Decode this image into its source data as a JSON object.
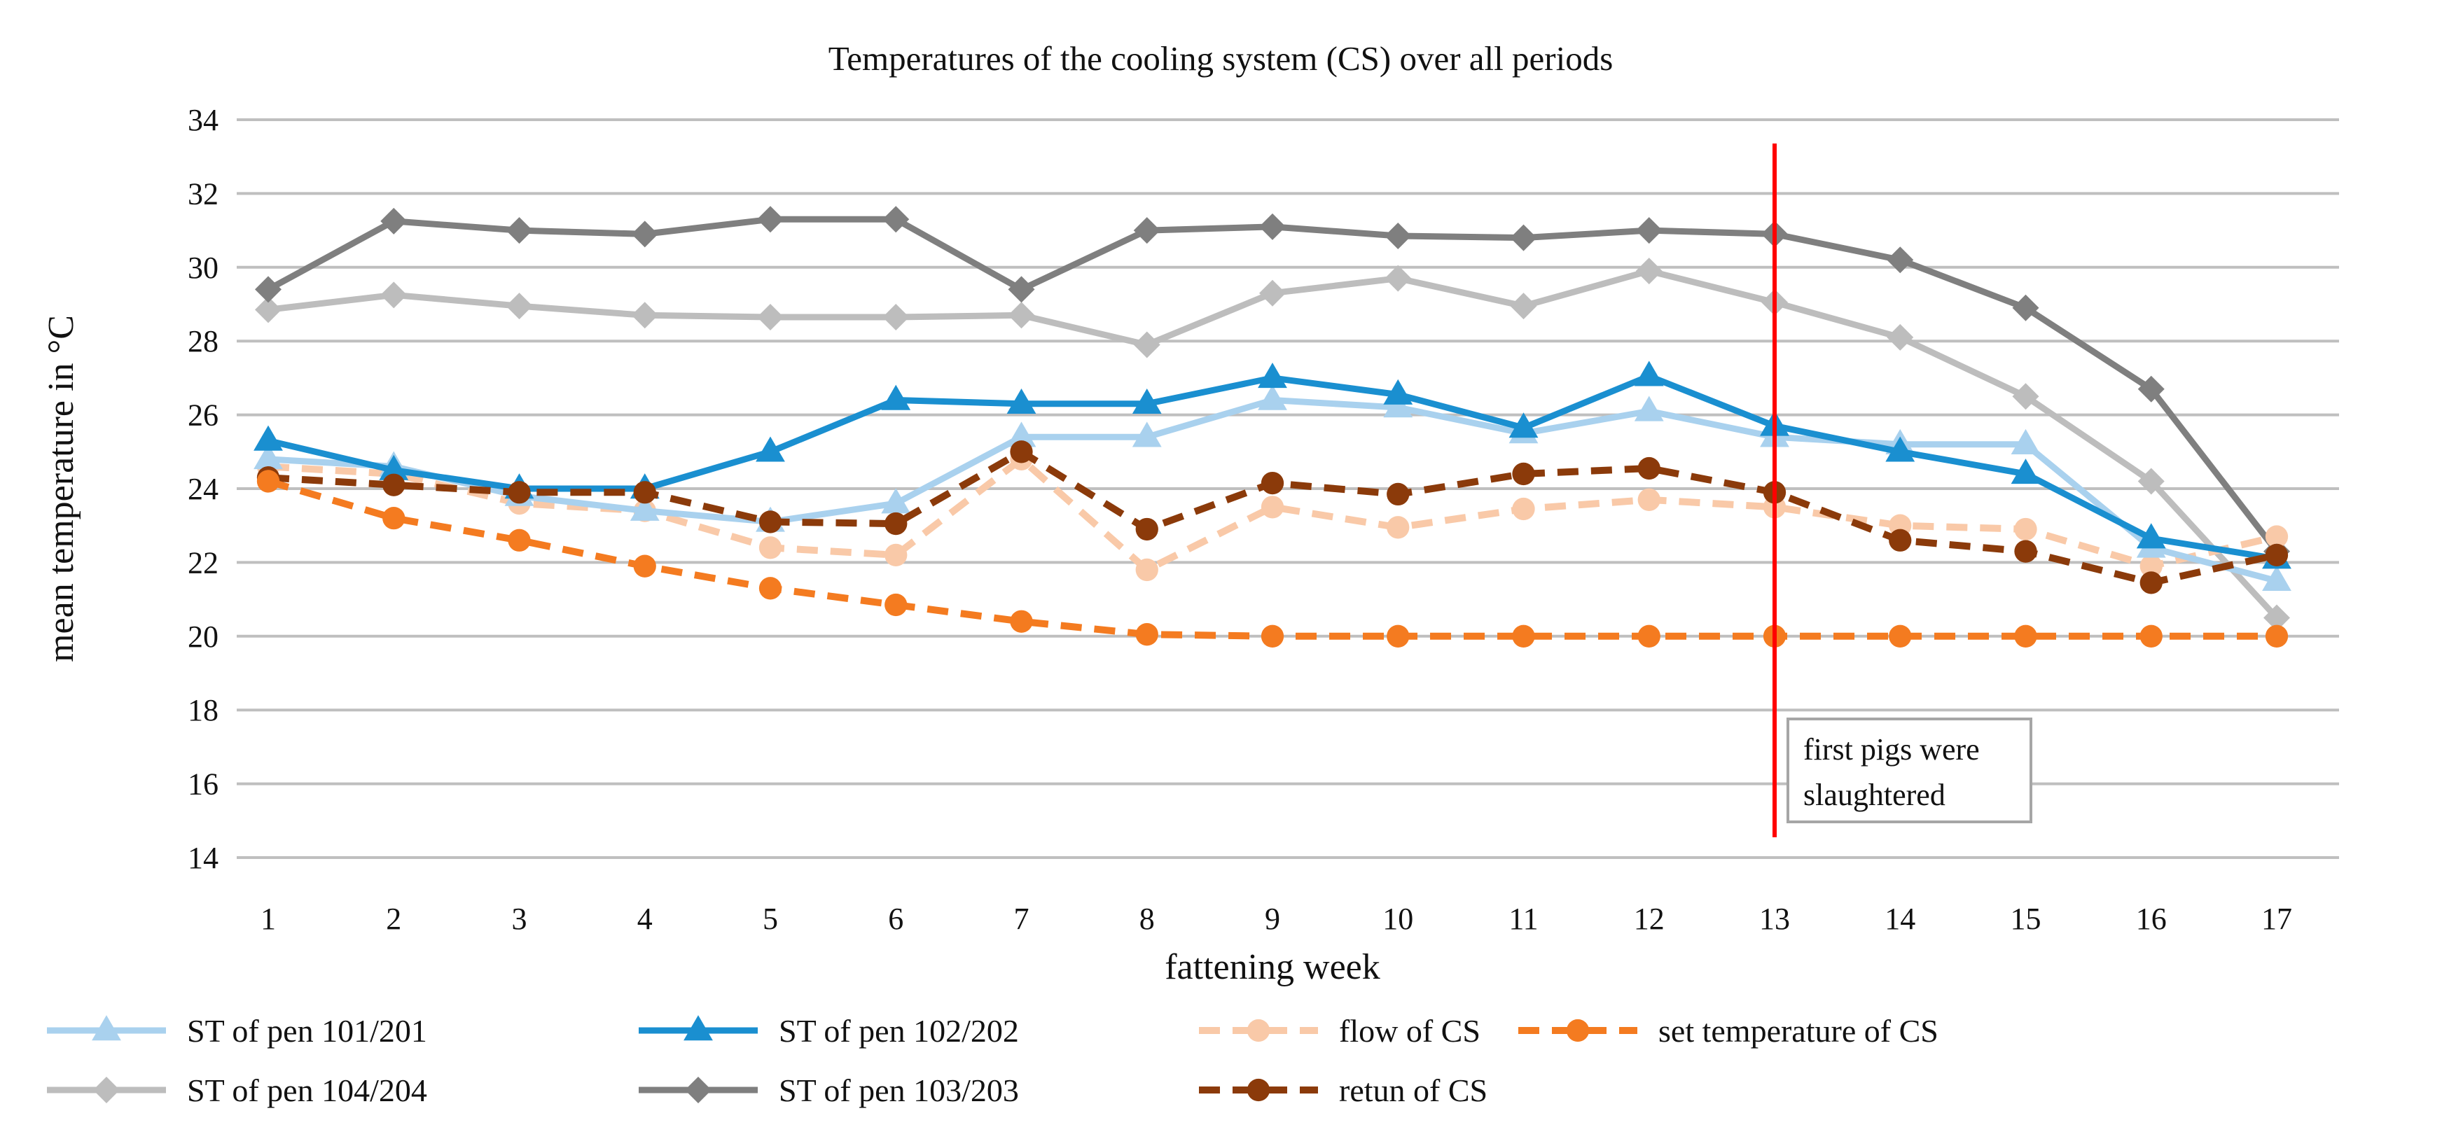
{
  "chart_data": {
    "type": "line",
    "title": "Temperatures of the cooling system (CS) over all periods",
    "xlabel": "fattening week",
    "ylabel": "mean temperature in °C",
    "ylim": [
      14,
      34
    ],
    "yticks": [
      14,
      16,
      18,
      20,
      22,
      24,
      26,
      28,
      30,
      32,
      34
    ],
    "x": [
      1,
      2,
      3,
      4,
      5,
      6,
      7,
      8,
      9,
      10,
      11,
      12,
      13,
      14,
      15,
      16,
      17
    ],
    "grid": "horizontal",
    "legend_position": "bottom",
    "series": [
      {
        "name": "ST of pen 101/201",
        "color": "#A9D1EE",
        "marker": "triangle",
        "dash": false,
        "values": [
          24.8,
          24.6,
          23.8,
          23.4,
          23.1,
          23.6,
          25.4,
          25.4,
          26.4,
          26.2,
          25.5,
          26.1,
          25.4,
          25.2,
          25.2,
          22.4,
          21.5
        ]
      },
      {
        "name": "ST of pen 102/202",
        "color": "#1A8FD0",
        "marker": "triangle",
        "dash": false,
        "values": [
          25.3,
          24.5,
          24.0,
          24.0,
          25.0,
          26.4,
          26.3,
          26.3,
          27.0,
          26.55,
          25.65,
          27.05,
          25.7,
          25.0,
          24.4,
          22.65,
          22.1
        ]
      },
      {
        "name": "flow of CS",
        "color": "#F9C9A8",
        "marker": "circle",
        "dash": true,
        "values": [
          24.6,
          24.4,
          23.6,
          23.4,
          22.4,
          22.2,
          24.8,
          21.8,
          23.5,
          22.95,
          23.45,
          23.7,
          23.5,
          23.0,
          22.9,
          21.9,
          22.7
        ]
      },
      {
        "name": "set temperature of CS",
        "color": "#F47B20",
        "marker": "circle",
        "dash": true,
        "values": [
          24.2,
          23.2,
          22.6,
          21.9,
          21.3,
          20.85,
          20.4,
          20.05,
          20.0,
          20.0,
          20.0,
          20.0,
          20.0,
          20.0,
          20.0,
          20.0,
          20.0
        ]
      },
      {
        "name": "ST of pen 104/204",
        "color": "#BDBDBD",
        "marker": "diamond",
        "dash": false,
        "values": [
          28.85,
          29.25,
          28.95,
          28.7,
          28.65,
          28.65,
          28.7,
          27.9,
          29.3,
          29.7,
          28.95,
          29.9,
          29.05,
          28.1,
          26.5,
          24.2,
          20.5
        ]
      },
      {
        "name": "ST of pen 103/203",
        "color": "#7F7F7F",
        "marker": "diamond",
        "dash": false,
        "values": [
          29.4,
          31.25,
          31.0,
          30.9,
          31.3,
          31.3,
          29.4,
          31.0,
          31.1,
          30.85,
          30.8,
          31.0,
          30.9,
          30.2,
          28.9,
          26.7,
          22.3
        ]
      },
      {
        "name": "retun of CS",
        "color": "#8B3A0A",
        "marker": "circle",
        "dash": true,
        "values": [
          24.3,
          24.1,
          23.9,
          23.9,
          23.1,
          23.05,
          25.0,
          22.9,
          24.15,
          23.85,
          24.4,
          24.55,
          23.9,
          22.6,
          22.3,
          21.45,
          22.2
        ]
      }
    ],
    "annotations": [
      {
        "type": "vertical-line",
        "x": 13,
        "color": "#FF0000"
      },
      {
        "type": "text-box",
        "text": "first pigs were slaughtered",
        "lines": [
          "first pigs were",
          "slaughtered"
        ]
      }
    ]
  }
}
